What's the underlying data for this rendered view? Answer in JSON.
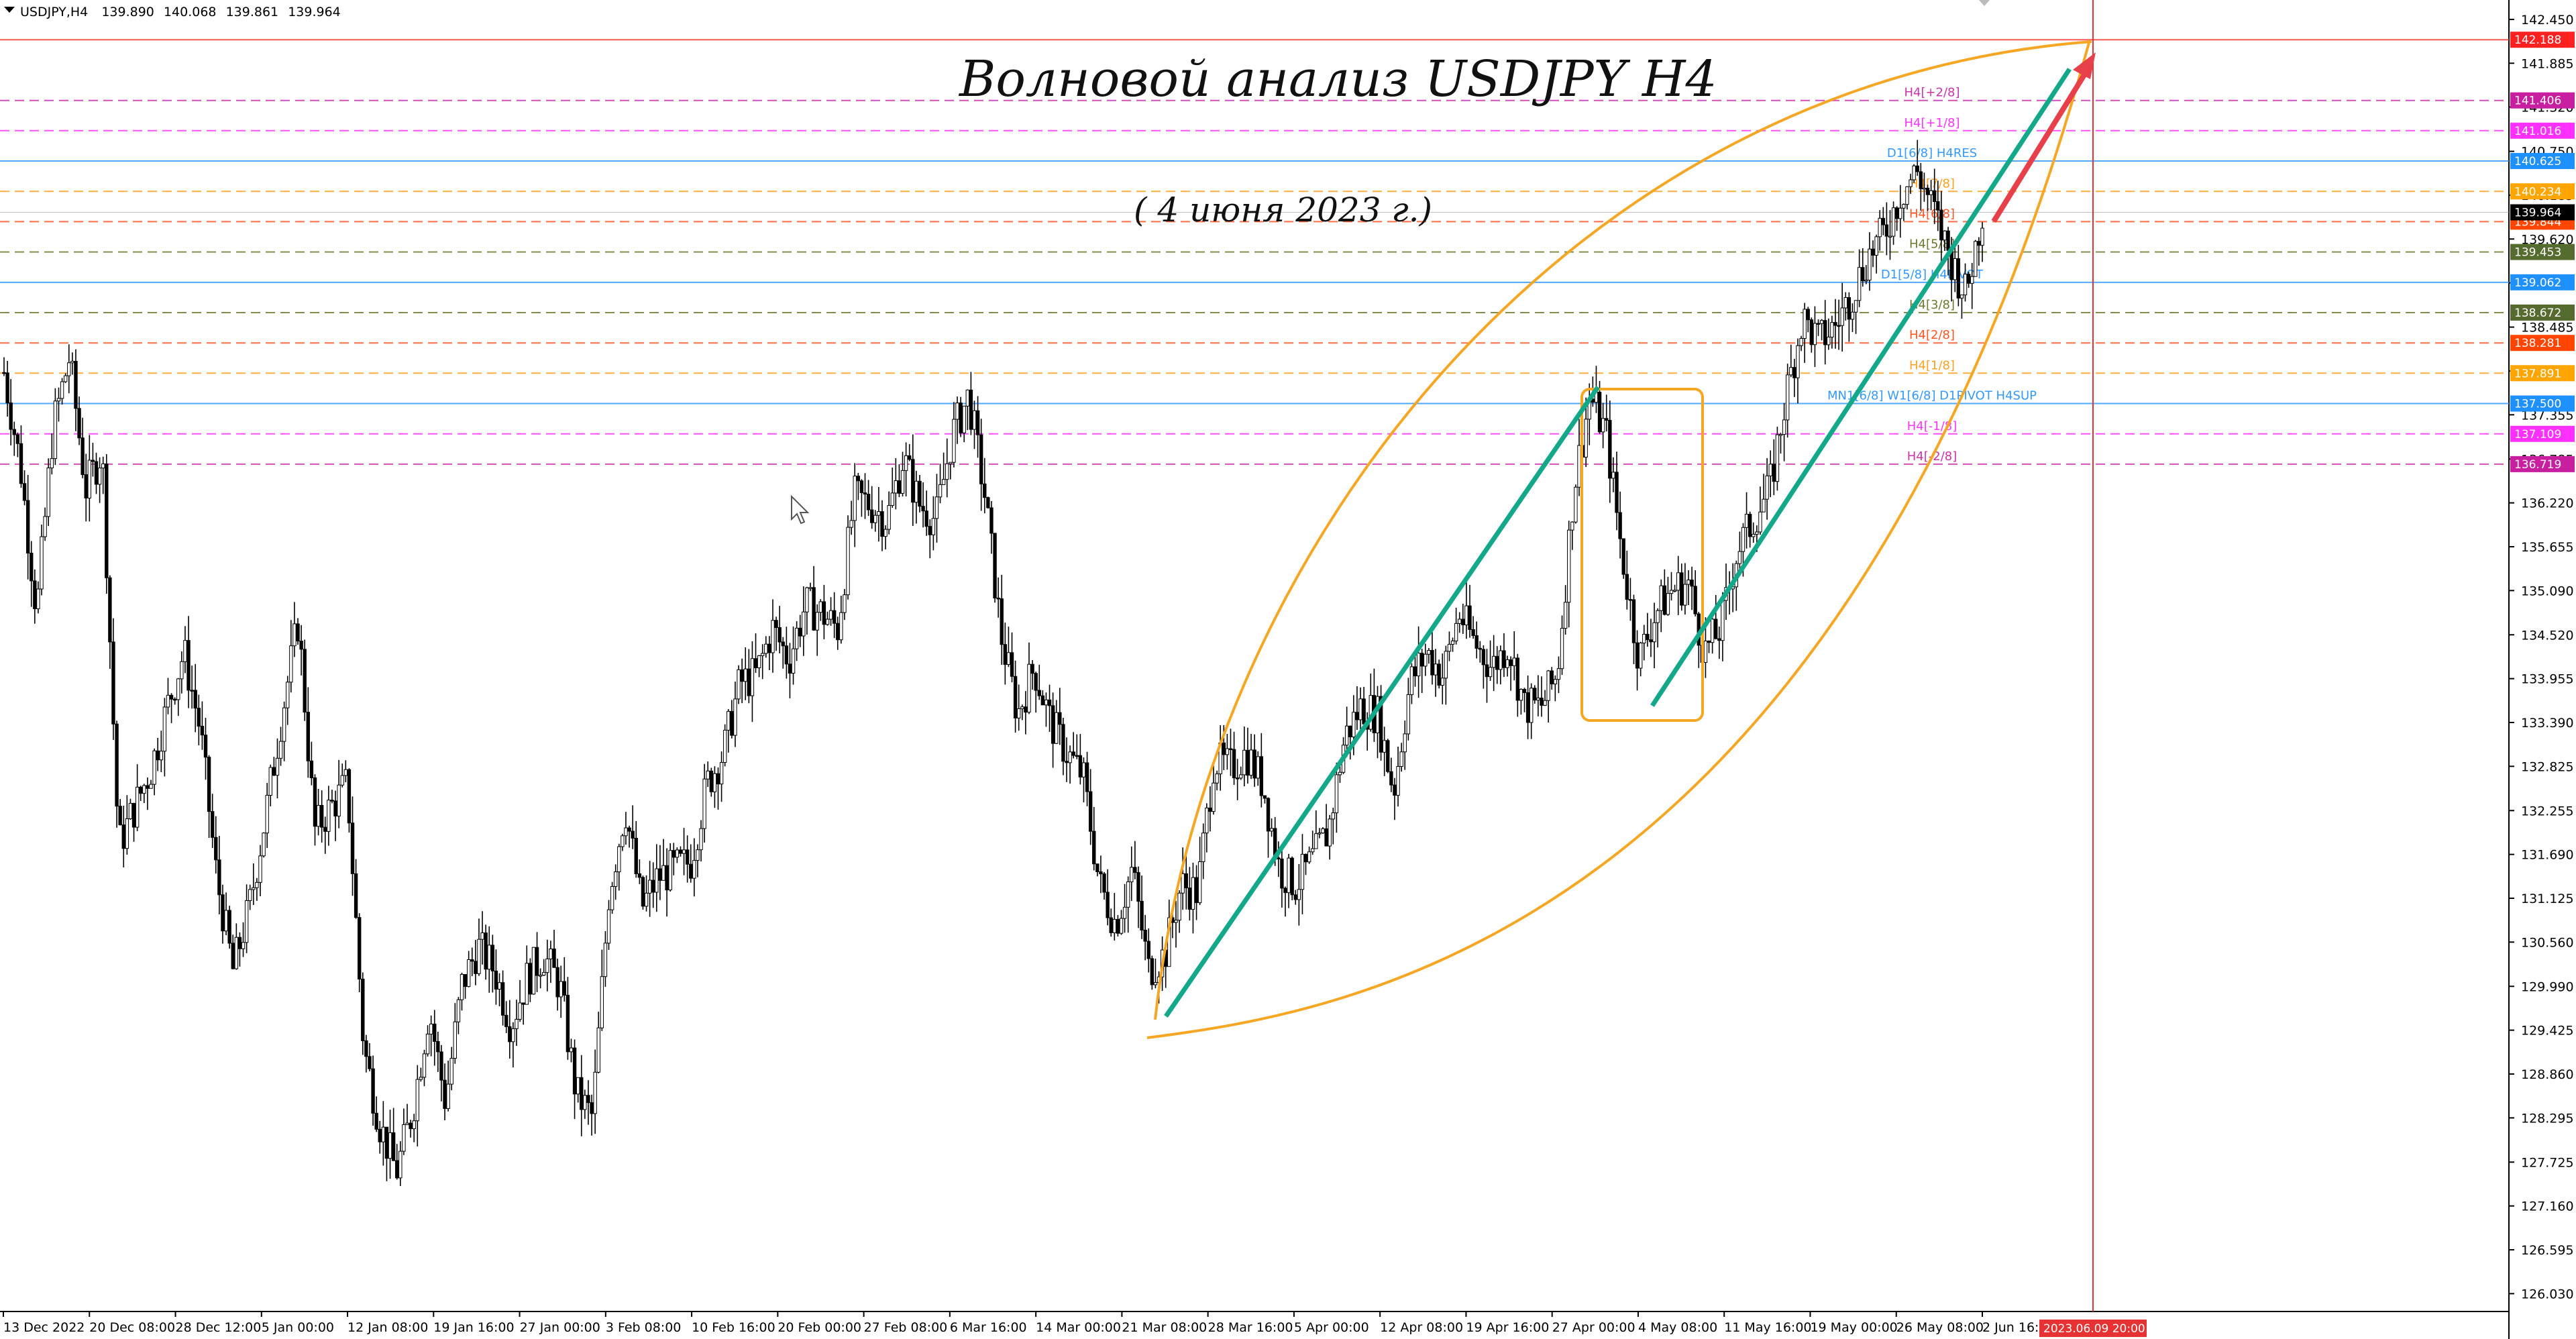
{
  "symbol_info": {
    "symbol": "USDJPY,H4",
    "open": "139.890",
    "high": "140.068",
    "low": "139.861",
    "close": "139.964"
  },
  "annotations": {
    "title": "Волновой анализ USDJPY H4",
    "subtitle": "( 4 июня 2023 г.)"
  },
  "price_axis": {
    "min": 125.8,
    "max": 142.7,
    "ticks": [
      "142.450",
      "141.885",
      "141.320",
      "140.750",
      "140.185",
      "139.620",
      "139.055",
      "138.485",
      "137.920",
      "137.355",
      "136.785",
      "136.220",
      "135.655",
      "135.090",
      "134.520",
      "133.955",
      "133.390",
      "132.825",
      "132.255",
      "131.690",
      "131.125",
      "130.560",
      "129.990",
      "129.425",
      "128.860",
      "128.295",
      "127.725",
      "127.160",
      "126.595",
      "126.030"
    ]
  },
  "time_axis": {
    "labels": [
      "13 Dec 2022",
      "20 Dec 08:00",
      "28 Dec 12:00",
      "5 Jan 00:00",
      "12 Jan 08:00",
      "19 Jan 16:00",
      "27 Jan 00:00",
      "3 Feb 08:00",
      "10 Feb 16:00",
      "20 Feb 00:00",
      "27 Feb 08:00",
      "6 Mar 16:00",
      "14 Mar 00:00",
      "21 Mar 08:00",
      "28 Mar 16:00",
      "5 Apr 00:00",
      "12 Apr 08:00",
      "19 Apr 16:00",
      "27 Apr 00:00",
      "4 May 08:00",
      "11 May 16:00",
      "19 May 00:00",
      "26 May 08:00",
      "2 Jun 16:00"
    ],
    "highlight_label": "2023.06.09 20:00",
    "highlight_color": "#e63232"
  },
  "levels": [
    {
      "price": 142.188,
      "label": "",
      "tag": "142.188",
      "color": "#ff3b3b",
      "tagbg": "#ff2020",
      "style": "solid"
    },
    {
      "price": 141.406,
      "label": "H4[+2/8]",
      "tag": "141.406",
      "color": "#cc33aa",
      "tagbg": "#c81ea0",
      "style": "dash"
    },
    {
      "price": 141.016,
      "label": "H4[+1/8]",
      "tag": "141.016",
      "color": "#ff33ff",
      "tagbg": "#ff30ff",
      "style": "dash"
    },
    {
      "price": 140.625,
      "label": "D1[6/8] H4RES",
      "tag": "140.625",
      "color": "#3399ff",
      "tagbg": "#1e90ff",
      "style": "solid"
    },
    {
      "price": 140.234,
      "label": "H4[7/8]",
      "tag": "140.234",
      "color": "#ffa020",
      "tagbg": "#ffa500",
      "style": "dash"
    },
    {
      "price": 139.844,
      "label": "H4[6/8]",
      "tag": "139.844",
      "color": "#ff5522",
      "tagbg": "#ff4500",
      "style": "dash"
    },
    {
      "price": 139.453,
      "label": "H4[5/8]",
      "tag": "139.453",
      "color": "#6b7a2e",
      "tagbg": "#556b2f",
      "style": "dash"
    },
    {
      "price": 139.062,
      "label": "D1[5/8] H4PIVOT",
      "tag": "139.062",
      "color": "#3399ff",
      "tagbg": "#1e90ff",
      "style": "solid"
    },
    {
      "price": 138.672,
      "label": "H4[3/8]",
      "tag": "138.672",
      "color": "#6b7a2e",
      "tagbg": "#556b2f",
      "style": "dash"
    },
    {
      "price": 138.281,
      "label": "H4[2/8]",
      "tag": "138.281",
      "color": "#ff5522",
      "tagbg": "#ff4500",
      "style": "dash"
    },
    {
      "price": 137.891,
      "label": "H4[1/8]",
      "tag": "137.891",
      "color": "#ffa020",
      "tagbg": "#ffa500",
      "style": "dash"
    },
    {
      "price": 137.5,
      "label": "MN1[6/8] W1[6/8] D1PIVOT H4SUP",
      "tag": "137.500",
      "color": "#3399ff",
      "tagbg": "#1e90ff",
      "style": "solid"
    },
    {
      "price": 137.109,
      "label": "H4[-1/8]",
      "tag": "137.109",
      "color": "#ff33ff",
      "tagbg": "#ff30ff",
      "style": "dash"
    },
    {
      "price": 136.719,
      "label": "H4[-2/8]",
      "tag": "136.719",
      "color": "#cc33aa",
      "tagbg": "#c81ea0",
      "style": "dash"
    }
  ],
  "current_price": {
    "tag": "139.964",
    "price": 139.964
  },
  "chart_data": {
    "type": "candlestick",
    "symbol": "USDJPY",
    "timeframe": "H4",
    "path_points": [
      {
        "date": "13 Dec 2022",
        "price": 137.9
      },
      {
        "date": "14 Dec",
        "price": 136.7
      },
      {
        "date": "15 Dec",
        "price": 134.8
      },
      {
        "date": "16 Dec",
        "price": 137.2
      },
      {
        "date": "18 Dec",
        "price": 138.1
      },
      {
        "date": "19 Dec",
        "price": 136.4
      },
      {
        "date": "20 Dec 08:00",
        "price": 136.9
      },
      {
        "date": "20 Dec 12:00",
        "price": 131.8
      },
      {
        "date": "21 Dec",
        "price": 132.3
      },
      {
        "date": "23 Dec",
        "price": 132.8
      },
      {
        "date": "26 Dec",
        "price": 133.6
      },
      {
        "date": "27 Dec",
        "price": 134.3
      },
      {
        "date": "28 Dec 12:00",
        "price": 133.3
      },
      {
        "date": "29 Dec",
        "price": 131.4
      },
      {
        "date": "2 Jan",
        "price": 130.2
      },
      {
        "date": "3 Jan",
        "price": 131.0
      },
      {
        "date": "4 Jan",
        "price": 132.2
      },
      {
        "date": "5 Jan 00:00",
        "price": 133.5
      },
      {
        "date": "6 Jan",
        "price": 134.7
      },
      {
        "date": "9 Jan",
        "price": 132.0
      },
      {
        "date": "10 Jan",
        "price": 132.3
      },
      {
        "date": "11 Jan",
        "price": 132.6
      },
      {
        "date": "12 Jan 08:00",
        "price": 129.2
      },
      {
        "date": "13 Jan",
        "price": 128.2
      },
      {
        "date": "16 Jan",
        "price": 127.6
      },
      {
        "date": "17 Jan",
        "price": 128.4
      },
      {
        "date": "18 Jan",
        "price": 129.7
      },
      {
        "date": "19 Jan 16:00",
        "price": 128.5
      },
      {
        "date": "20 Jan",
        "price": 130.0
      },
      {
        "date": "23 Jan",
        "price": 130.5
      },
      {
        "date": "24 Jan",
        "price": 130.2
      },
      {
        "date": "25 Jan",
        "price": 129.5
      },
      {
        "date": "27 Jan 00:00",
        "price": 130.1
      },
      {
        "date": "30 Jan",
        "price": 130.4
      },
      {
        "date": "31 Jan",
        "price": 130.0
      },
      {
        "date": "1 Feb",
        "price": 128.6
      },
      {
        "date": "2 Feb",
        "price": 128.3
      },
      {
        "date": "3 Feb 08:00",
        "price": 131.2
      },
      {
        "date": "6 Feb",
        "price": 132.3
      },
      {
        "date": "7 Feb",
        "price": 131.0
      },
      {
        "date": "8 Feb",
        "price": 131.4
      },
      {
        "date": "9 Feb",
        "price": 131.5
      },
      {
        "date": "10 Feb 16:00",
        "price": 131.6
      },
      {
        "date": "13 Feb",
        "price": 132.6
      },
      {
        "date": "14 Feb",
        "price": 133.0
      },
      {
        "date": "15 Feb",
        "price": 133.9
      },
      {
        "date": "16 Feb",
        "price": 134.0
      },
      {
        "date": "17 Feb",
        "price": 134.6
      },
      {
        "date": "20 Feb 00:00",
        "price": 134.2
      },
      {
        "date": "21 Feb",
        "price": 134.9
      },
      {
        "date": "22 Feb",
        "price": 134.8
      },
      {
        "date": "24 Feb",
        "price": 134.6
      },
      {
        "date": "27 Feb 08:00",
        "price": 136.3
      },
      {
        "date": "28 Feb",
        "price": 136.2
      },
      {
        "date": "1 Mar",
        "price": 136.0
      },
      {
        "date": "2 Mar",
        "price": 136.8
      },
      {
        "date": "3 Mar",
        "price": 136.2
      },
      {
        "date": "6 Mar 16:00",
        "price": 136.0
      },
      {
        "date": "7 Mar",
        "price": 137.1
      },
      {
        "date": "8 Mar",
        "price": 137.6
      },
      {
        "date": "9 Mar",
        "price": 136.3
      },
      {
        "date": "10 Mar",
        "price": 134.5
      },
      {
        "date": "13 Mar",
        "price": 133.5
      },
      {
        "date": "14 Mar 00:00",
        "price": 134.1
      },
      {
        "date": "15 Mar",
        "price": 133.4
      },
      {
        "date": "16 Mar",
        "price": 133.0
      },
      {
        "date": "17 Mar",
        "price": 132.7
      },
      {
        "date": "20 Mar",
        "price": 131.3
      },
      {
        "date": "21 Mar 08:00",
        "price": 130.8
      },
      {
        "date": "22 Mar",
        "price": 131.5
      },
      {
        "date": "23 Mar",
        "price": 130.2
      },
      {
        "date": "24 Mar",
        "price": 130.4
      },
      {
        "date": "27 Mar",
        "price": 131.3
      },
      {
        "date": "28 Mar 16:00",
        "price": 131.2
      },
      {
        "date": "29 Mar",
        "price": 132.9
      },
      {
        "date": "30 Mar",
        "price": 132.8
      },
      {
        "date": "31 Mar",
        "price": 133.0
      },
      {
        "date": "3 Apr",
        "price": 132.6
      },
      {
        "date": "4 Apr",
        "price": 131.5
      },
      {
        "date": "5 Apr 00:00",
        "price": 131.3
      },
      {
        "date": "6 Apr",
        "price": 131.6
      },
      {
        "date": "7 Apr",
        "price": 132.0
      },
      {
        "date": "10 Apr",
        "price": 133.2
      },
      {
        "date": "11 Apr",
        "price": 133.6
      },
      {
        "date": "12 Apr 08:00",
        "price": 133.5
      },
      {
        "date": "13 Apr",
        "price": 132.5
      },
      {
        "date": "14 Apr",
        "price": 133.9
      },
      {
        "date": "17 Apr",
        "price": 134.3
      },
      {
        "date": "18 Apr",
        "price": 134.0
      },
      {
        "date": "19 Apr 16:00",
        "price": 134.8
      },
      {
        "date": "20 Apr",
        "price": 134.4
      },
      {
        "date": "21 Apr",
        "price": 134.1
      },
      {
        "date": "24 Apr",
        "price": 134.4
      },
      {
        "date": "25 Apr",
        "price": 133.6
      },
      {
        "date": "26 Apr",
        "price": 133.6
      },
      {
        "date": "27 Apr 00:00",
        "price": 134.0
      },
      {
        "date": "28 Apr",
        "price": 136.4
      },
      {
        "date": "1 May",
        "price": 137.6
      },
      {
        "date": "2 May",
        "price": 137.1
      },
      {
        "date": "3 May",
        "price": 135.5
      },
      {
        "date": "4 May 08:00",
        "price": 134.2
      },
      {
        "date": "5 May",
        "price": 134.8
      },
      {
        "date": "8 May",
        "price": 135.1
      },
      {
        "date": "9 May",
        "price": 135.2
      },
      {
        "date": "10 May",
        "price": 134.3
      },
      {
        "date": "11 May 16:00",
        "price": 134.6
      },
      {
        "date": "12 May",
        "price": 135.6
      },
      {
        "date": "15 May",
        "price": 136.0
      },
      {
        "date": "16 May",
        "price": 136.4
      },
      {
        "date": "17 May",
        "price": 137.6
      },
      {
        "date": "18 May",
        "price": 138.6
      },
      {
        "date": "19 May 00:00",
        "price": 138.3
      },
      {
        "date": "22 May",
        "price": 138.5
      },
      {
        "date": "23 May",
        "price": 138.9
      },
      {
        "date": "24 May",
        "price": 139.4
      },
      {
        "date": "25 May",
        "price": 139.7
      },
      {
        "date": "26 May 08:00",
        "price": 140.2
      },
      {
        "date": "29 May",
        "price": 140.5
      },
      {
        "date": "30 May",
        "price": 140.0
      },
      {
        "date": "31 May",
        "price": 139.4
      },
      {
        "date": "1 Jun",
        "price": 138.9
      },
      {
        "date": "2 Jun 16:00",
        "price": 139.964
      }
    ]
  }
}
